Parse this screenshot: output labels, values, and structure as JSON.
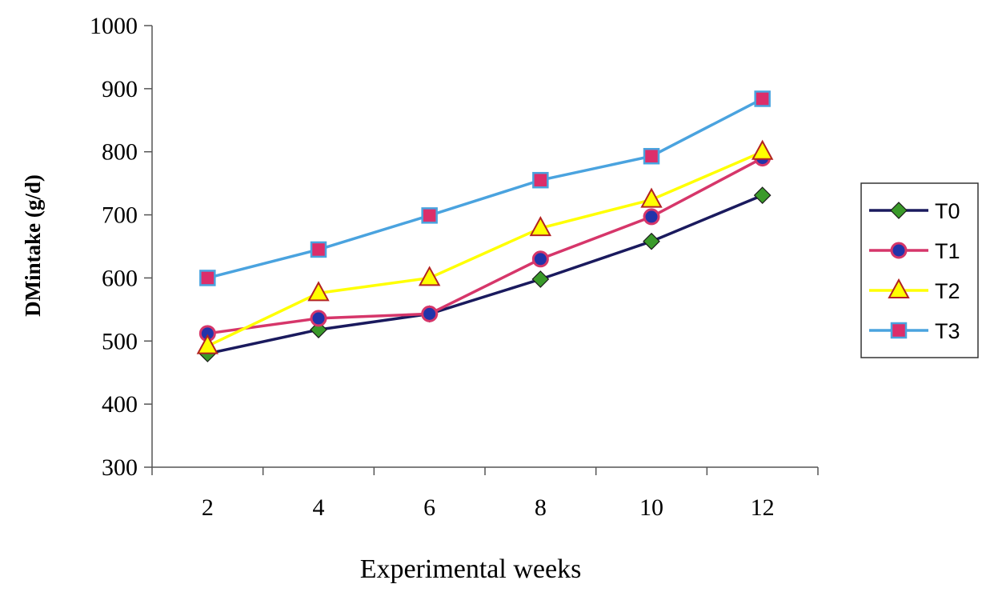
{
  "chart_data": {
    "type": "line",
    "xlabel": "Experimental weeks",
    "ylabel": "DMintake (g/d)",
    "categories": [
      "2",
      "4",
      "6",
      "8",
      "10",
      "12"
    ],
    "ylim": [
      300,
      1000
    ],
    "yticks": [
      300,
      400,
      500,
      600,
      700,
      800,
      900,
      1000
    ],
    "grid": false,
    "legend_position": "right",
    "series": [
      {
        "name": "T0",
        "values": [
          480,
          518,
          543,
          598,
          658,
          731
        ],
        "color": "#1a1a5e",
        "marker": "diamond",
        "marker_color": "#3a9a2a"
      },
      {
        "name": "T1",
        "values": [
          512,
          536,
          543,
          630,
          697,
          790
        ],
        "color": "#d6366a",
        "marker": "circle",
        "marker_color": "#2233aa"
      },
      {
        "name": "T2",
        "values": [
          492,
          576,
          600,
          679,
          724,
          800
        ],
        "color": "#ffff00",
        "marker": "triangle",
        "marker_color": "#ffff00",
        "marker_edge": "#b22222"
      },
      {
        "name": "T3",
        "values": [
          600,
          645,
          699,
          755,
          793,
          884
        ],
        "color": "#4aa3df",
        "marker": "square",
        "marker_color": "#dc2e6a"
      }
    ]
  }
}
